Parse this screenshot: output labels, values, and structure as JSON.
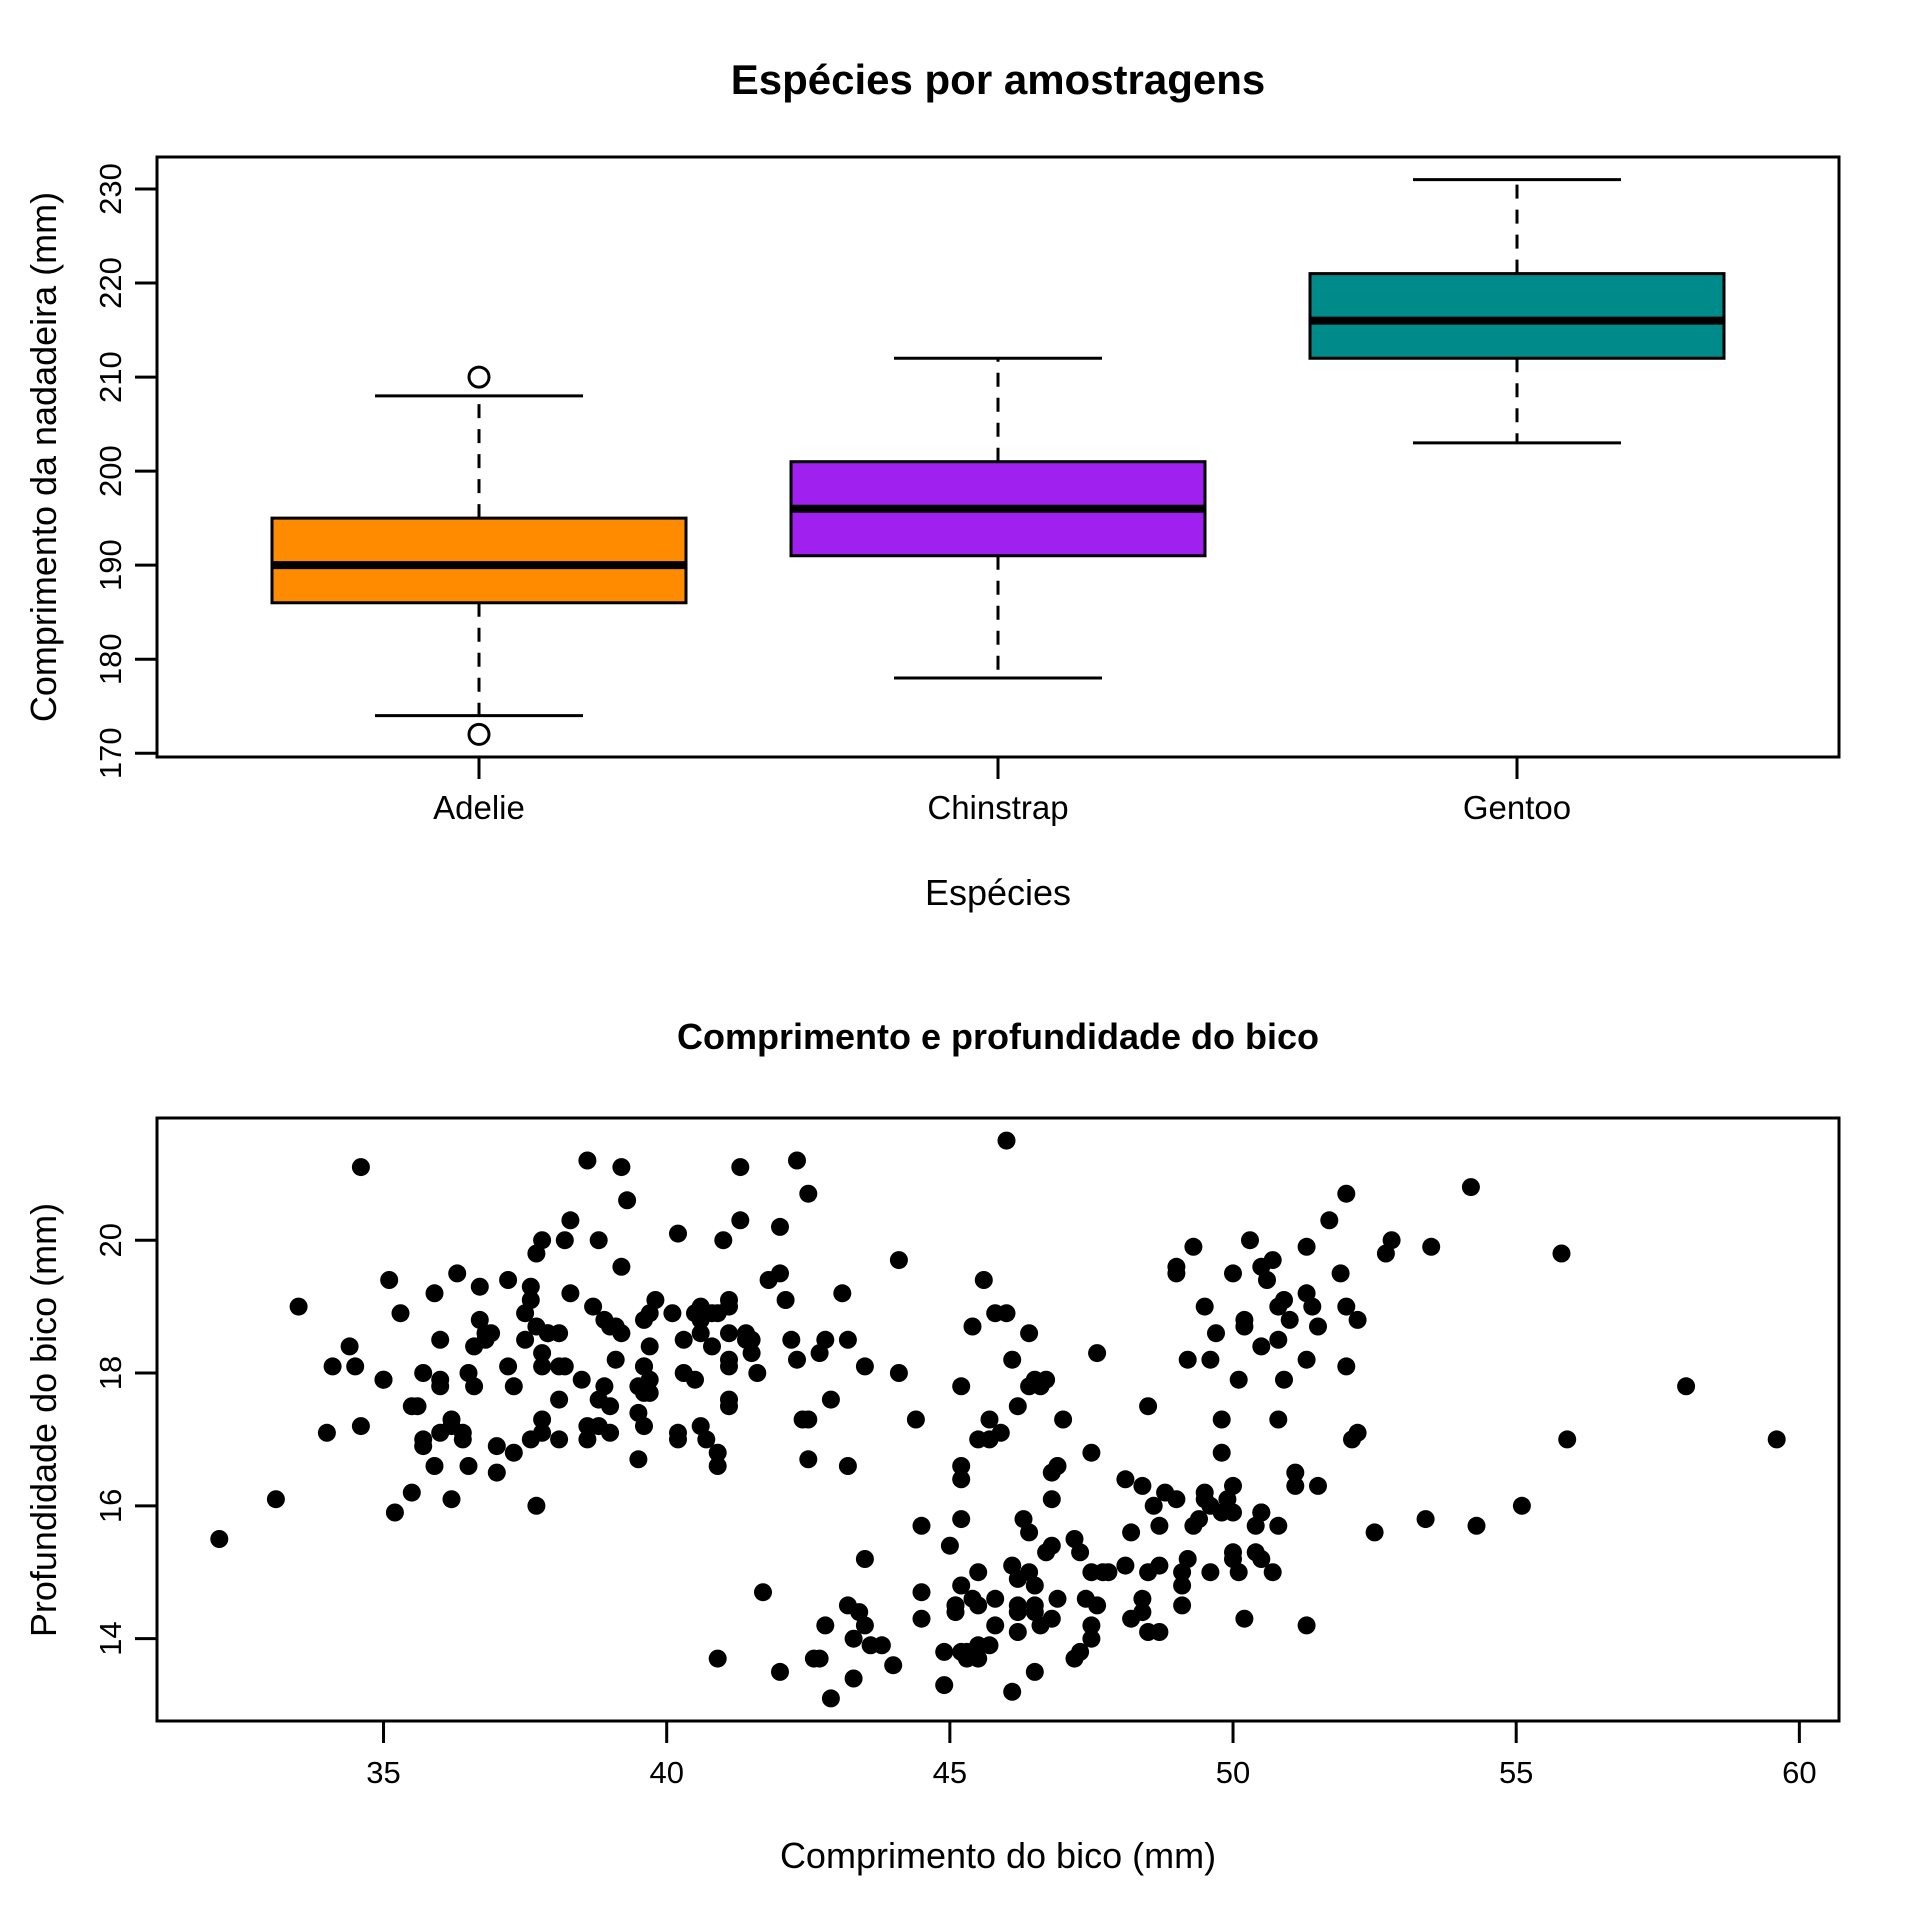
{
  "figure": {
    "background": "#ffffff",
    "foreground": "#000000"
  },
  "chart_data": [
    {
      "type": "boxplot",
      "title": "Espécies por amostragens",
      "xlabel": "Espécies",
      "ylabel": "Comprimento da nadadeira (mm)",
      "categories": [
        "Adelie",
        "Chinstrap",
        "Gentoo"
      ],
      "box_colors": [
        "#FF8C00",
        "#A020F0",
        "#008B8B"
      ],
      "yticks": [
        170,
        180,
        190,
        200,
        210,
        220,
        230
      ],
      "ylim": [
        169.6,
        233.4
      ],
      "grid": false,
      "stats": [
        {
          "lower_whisker": 174,
          "q1": 186,
          "median": 190,
          "q3": 195,
          "upper_whisker": 208,
          "outliers": [
            172,
            210
          ]
        },
        {
          "lower_whisker": 178,
          "q1": 191,
          "median": 196,
          "q3": 201,
          "upper_whisker": 212,
          "outliers": []
        },
        {
          "lower_whisker": 203,
          "q1": 212,
          "median": 216,
          "q3": 221,
          "upper_whisker": 231,
          "outliers": []
        }
      ]
    },
    {
      "type": "scatter",
      "title": "Comprimento e profundidade do bico",
      "xlabel": "Comprimento do bico (mm)",
      "ylabel": "Profundidade do bico (mm)",
      "xticks": [
        35,
        40,
        45,
        50,
        55,
        60
      ],
      "yticks": [
        14,
        16,
        18,
        20
      ],
      "xlim": [
        31.0,
        60.7
      ],
      "ylim": [
        12.76,
        21.84
      ],
      "grid": false,
      "point_color": "#000000",
      "points": [
        [
          39.1,
          18.7
        ],
        [
          39.5,
          17.4
        ],
        [
          40.3,
          18.0
        ],
        [
          36.7,
          19.3
        ],
        [
          39.3,
          20.6
        ],
        [
          38.9,
          17.8
        ],
        [
          39.2,
          19.6
        ],
        [
          34.1,
          18.1
        ],
        [
          42.0,
          20.2
        ],
        [
          37.8,
          17.1
        ],
        [
          37.8,
          17.3
        ],
        [
          41.1,
          17.6
        ],
        [
          38.6,
          21.2
        ],
        [
          34.6,
          21.1
        ],
        [
          36.6,
          17.8
        ],
        [
          38.7,
          19.0
        ],
        [
          42.5,
          20.7
        ],
        [
          34.4,
          18.4
        ],
        [
          46.0,
          21.5
        ],
        [
          37.8,
          18.3
        ],
        [
          37.7,
          18.7
        ],
        [
          35.9,
          19.2
        ],
        [
          38.2,
          18.1
        ],
        [
          38.8,
          17.2
        ],
        [
          35.3,
          18.9
        ],
        [
          40.6,
          18.6
        ],
        [
          40.5,
          17.9
        ],
        [
          37.9,
          18.6
        ],
        [
          40.5,
          18.9
        ],
        [
          39.5,
          16.7
        ],
        [
          37.2,
          18.1
        ],
        [
          39.5,
          17.8
        ],
        [
          40.9,
          18.9
        ],
        [
          36.4,
          17.0
        ],
        [
          39.2,
          21.1
        ],
        [
          38.8,
          20.0
        ],
        [
          42.2,
          18.5
        ],
        [
          37.6,
          19.3
        ],
        [
          39.8,
          19.1
        ],
        [
          36.5,
          18.0
        ],
        [
          40.8,
          18.4
        ],
        [
          36.0,
          18.5
        ],
        [
          44.1,
          19.7
        ],
        [
          37.0,
          16.9
        ],
        [
          39.6,
          18.8
        ],
        [
          41.1,
          19.0
        ],
        [
          37.5,
          18.9
        ],
        [
          36.0,
          17.9
        ],
        [
          42.3,
          21.2
        ],
        [
          39.6,
          17.7
        ],
        [
          40.1,
          18.9
        ],
        [
          35.0,
          17.9
        ],
        [
          42.0,
          19.5
        ],
        [
          34.5,
          18.1
        ],
        [
          41.4,
          18.6
        ],
        [
          39.0,
          17.5
        ],
        [
          40.6,
          18.8
        ],
        [
          36.5,
          16.6
        ],
        [
          37.6,
          19.1
        ],
        [
          35.7,
          16.9
        ],
        [
          41.3,
          21.1
        ],
        [
          37.6,
          17.0
        ],
        [
          41.1,
          18.2
        ],
        [
          36.4,
          17.1
        ],
        [
          41.6,
          18.0
        ],
        [
          35.5,
          16.2
        ],
        [
          41.1,
          19.1
        ],
        [
          35.9,
          16.6
        ],
        [
          41.8,
          19.4
        ],
        [
          33.5,
          19.0
        ],
        [
          39.7,
          18.4
        ],
        [
          39.6,
          17.2
        ],
        [
          45.8,
          18.9
        ],
        [
          35.5,
          17.5
        ],
        [
          42.8,
          18.5
        ],
        [
          40.9,
          16.8
        ],
        [
          37.2,
          19.4
        ],
        [
          36.2,
          16.1
        ],
        [
          42.1,
          19.1
        ],
        [
          34.6,
          17.2
        ],
        [
          42.9,
          17.6
        ],
        [
          36.7,
          18.8
        ],
        [
          35.1,
          19.4
        ],
        [
          37.3,
          17.8
        ],
        [
          41.3,
          20.3
        ],
        [
          36.3,
          19.5
        ],
        [
          36.9,
          18.6
        ],
        [
          38.3,
          19.2
        ],
        [
          38.9,
          18.8
        ],
        [
          35.7,
          18.0
        ],
        [
          41.1,
          18.1
        ],
        [
          34.0,
          17.1
        ],
        [
          39.6,
          18.1
        ],
        [
          36.2,
          17.3
        ],
        [
          40.8,
          18.9
        ],
        [
          38.1,
          18.6
        ],
        [
          40.3,
          18.5
        ],
        [
          33.1,
          16.1
        ],
        [
          43.2,
          18.5
        ],
        [
          35.0,
          17.9
        ],
        [
          41.0,
          20.0
        ],
        [
          37.7,
          16.0
        ],
        [
          37.8,
          20.0
        ],
        [
          37.9,
          18.6
        ],
        [
          39.7,
          18.9
        ],
        [
          38.6,
          17.2
        ],
        [
          38.2,
          20.0
        ],
        [
          38.1,
          17.0
        ],
        [
          38.3,
          20.3
        ],
        [
          39.1,
          18.2
        ],
        [
          41.1,
          17.5
        ],
        [
          36.0,
          17.1
        ],
        [
          42.3,
          18.2
        ],
        [
          39.6,
          18.1
        ],
        [
          36.2,
          17.2
        ],
        [
          37.7,
          19.8
        ],
        [
          40.2,
          17.1
        ],
        [
          41.4,
          18.5
        ],
        [
          35.2,
          15.9
        ],
        [
          40.6,
          19.0
        ],
        [
          38.8,
          17.6
        ],
        [
          41.5,
          18.3
        ],
        [
          39.0,
          17.1
        ],
        [
          44.1,
          18.0
        ],
        [
          38.5,
          17.9
        ],
        [
          43.1,
          19.2
        ],
        [
          36.8,
          18.5
        ],
        [
          37.5,
          18.5
        ],
        [
          38.1,
          17.6
        ],
        [
          35.6,
          17.5
        ],
        [
          40.2,
          20.1
        ],
        [
          37.0,
          16.5
        ],
        [
          39.7,
          17.7
        ],
        [
          40.2,
          17.0
        ],
        [
          40.6,
          17.2
        ],
        [
          32.1,
          15.5
        ],
        [
          40.7,
          17.0
        ],
        [
          37.3,
          16.8
        ],
        [
          39.0,
          18.7
        ],
        [
          39.2,
          18.6
        ],
        [
          36.6,
          18.4
        ],
        [
          36.0,
          17.8
        ],
        [
          37.8,
          18.1
        ],
        [
          41.5,
          18.5
        ],
        [
          42.7,
          18.3
        ],
        [
          38.6,
          17.0
        ],
        [
          36.8,
          18.6
        ],
        [
          35.7,
          17.0
        ],
        [
          41.1,
          18.6
        ],
        [
          39.7,
          17.9
        ],
        [
          38.1,
          18.1
        ],
        [
          46.5,
          17.9
        ],
        [
          50.0,
          19.5
        ],
        [
          51.3,
          19.2
        ],
        [
          45.4,
          18.7
        ],
        [
          52.7,
          19.8
        ],
        [
          45.2,
          17.8
        ],
        [
          46.1,
          18.2
        ],
        [
          51.3,
          18.2
        ],
        [
          46.0,
          18.9
        ],
        [
          51.3,
          19.9
        ],
        [
          46.6,
          17.8
        ],
        [
          51.7,
          20.3
        ],
        [
          47.0,
          17.3
        ],
        [
          52.0,
          18.1
        ],
        [
          45.9,
          17.1
        ],
        [
          50.5,
          19.6
        ],
        [
          50.3,
          20.0
        ],
        [
          58.0,
          17.8
        ],
        [
          46.4,
          18.6
        ],
        [
          49.2,
          18.2
        ],
        [
          42.4,
          17.3
        ],
        [
          48.5,
          17.5
        ],
        [
          43.2,
          16.6
        ],
        [
          50.6,
          19.4
        ],
        [
          46.7,
          17.9
        ],
        [
          52.0,
          19.0
        ],
        [
          50.5,
          18.4
        ],
        [
          49.5,
          19.0
        ],
        [
          46.4,
          17.8
        ],
        [
          52.8,
          20.0
        ],
        [
          40.9,
          16.6
        ],
        [
          54.2,
          20.8
        ],
        [
          42.5,
          16.7
        ],
        [
          51.0,
          18.8
        ],
        [
          49.7,
          18.6
        ],
        [
          47.5,
          16.8
        ],
        [
          47.6,
          18.3
        ],
        [
          52.0,
          20.7
        ],
        [
          46.9,
          16.6
        ],
        [
          53.5,
          19.9
        ],
        [
          49.0,
          19.5
        ],
        [
          46.2,
          17.5
        ],
        [
          50.9,
          19.1
        ],
        [
          45.5,
          17.0
        ],
        [
          50.9,
          17.9
        ],
        [
          50.8,
          18.5
        ],
        [
          50.1,
          17.9
        ],
        [
          49.0,
          19.6
        ],
        [
          51.5,
          18.7
        ],
        [
          49.8,
          17.3
        ],
        [
          48.1,
          16.4
        ],
        [
          51.4,
          19.0
        ],
        [
          45.7,
          17.3
        ],
        [
          50.7,
          19.7
        ],
        [
          42.5,
          17.3
        ],
        [
          52.2,
          18.8
        ],
        [
          45.2,
          16.6
        ],
        [
          49.3,
          19.9
        ],
        [
          50.2,
          18.8
        ],
        [
          45.6,
          19.4
        ],
        [
          51.9,
          19.5
        ],
        [
          46.8,
          16.5
        ],
        [
          45.7,
          17.0
        ],
        [
          55.8,
          19.8
        ],
        [
          43.5,
          18.1
        ],
        [
          49.6,
          18.2
        ],
        [
          50.8,
          19.0
        ],
        [
          50.2,
          18.7
        ],
        [
          46.1,
          13.2
        ],
        [
          50.0,
          16.3
        ],
        [
          48.7,
          14.1
        ],
        [
          50.0,
          15.2
        ],
        [
          47.6,
          14.5
        ],
        [
          46.5,
          13.5
        ],
        [
          45.4,
          14.6
        ],
        [
          46.7,
          15.3
        ],
        [
          43.3,
          13.4
        ],
        [
          46.8,
          15.4
        ],
        [
          40.9,
          13.7
        ],
        [
          49.0,
          16.1
        ],
        [
          45.5,
          13.7
        ],
        [
          48.4,
          14.6
        ],
        [
          45.8,
          14.6
        ],
        [
          49.3,
          15.7
        ],
        [
          42.0,
          13.5
        ],
        [
          49.2,
          15.2
        ],
        [
          46.2,
          14.5
        ],
        [
          48.7,
          15.1
        ],
        [
          50.2,
          14.3
        ],
        [
          45.1,
          14.5
        ],
        [
          46.5,
          14.5
        ],
        [
          46.3,
          15.8
        ],
        [
          42.9,
          13.1
        ],
        [
          46.1,
          15.1
        ],
        [
          44.5,
          14.3
        ],
        [
          47.8,
          15.0
        ],
        [
          48.2,
          14.3
        ],
        [
          50.0,
          15.3
        ],
        [
          47.3,
          15.3
        ],
        [
          42.8,
          14.2
        ],
        [
          45.1,
          14.5
        ],
        [
          59.6,
          17.0
        ],
        [
          49.1,
          14.8
        ],
        [
          48.4,
          16.3
        ],
        [
          42.6,
          13.7
        ],
        [
          44.4,
          17.3
        ],
        [
          44.0,
          13.6
        ],
        [
          48.7,
          15.7
        ],
        [
          42.7,
          13.7
        ],
        [
          49.6,
          16.0
        ],
        [
          45.3,
          13.7
        ],
        [
          49.6,
          15.0
        ],
        [
          50.5,
          15.9
        ],
        [
          43.6,
          13.9
        ],
        [
          45.5,
          13.9
        ],
        [
          50.5,
          15.9
        ],
        [
          44.9,
          13.3
        ],
        [
          45.2,
          15.8
        ],
        [
          46.6,
          14.2
        ],
        [
          48.5,
          14.1
        ],
        [
          45.1,
          14.4
        ],
        [
          50.1,
          15.0
        ],
        [
          46.5,
          14.4
        ],
        [
          45.0,
          15.4
        ],
        [
          43.8,
          13.9
        ],
        [
          45.5,
          15.0
        ],
        [
          43.2,
          14.5
        ],
        [
          50.4,
          15.3
        ],
        [
          45.3,
          13.8
        ],
        [
          46.2,
          14.9
        ],
        [
          45.7,
          13.9
        ],
        [
          54.3,
          15.7
        ],
        [
          45.8,
          14.2
        ],
        [
          49.8,
          16.8
        ],
        [
          46.2,
          14.4
        ],
        [
          49.5,
          16.2
        ],
        [
          43.5,
          14.2
        ],
        [
          50.7,
          15.0
        ],
        [
          47.7,
          15.0
        ],
        [
          46.4,
          15.6
        ],
        [
          48.2,
          15.6
        ],
        [
          46.5,
          14.8
        ],
        [
          46.4,
          15.0
        ],
        [
          48.6,
          16.0
        ],
        [
          47.5,
          14.2
        ],
        [
          51.1,
          16.3
        ],
        [
          45.2,
          13.8
        ],
        [
          45.2,
          16.4
        ],
        [
          49.1,
          14.5
        ],
        [
          52.5,
          15.6
        ],
        [
          47.4,
          14.6
        ],
        [
          50.0,
          15.9
        ],
        [
          44.9,
          13.8
        ],
        [
          50.8,
          17.3
        ],
        [
          43.4,
          14.4
        ],
        [
          51.3,
          14.2
        ],
        [
          47.5,
          14.0
        ],
        [
          52.1,
          17.0
        ],
        [
          47.5,
          15.0
        ],
        [
          52.2,
          17.1
        ],
        [
          45.5,
          14.5
        ],
        [
          49.5,
          16.1
        ],
        [
          44.5,
          14.7
        ],
        [
          50.8,
          15.7
        ],
        [
          49.4,
          15.8
        ],
        [
          46.9,
          14.6
        ],
        [
          48.4,
          14.4
        ],
        [
          51.1,
          16.5
        ],
        [
          48.5,
          15.0
        ],
        [
          55.9,
          17.0
        ],
        [
          47.2,
          15.5
        ],
        [
          49.1,
          15.0
        ],
        [
          47.3,
          13.8
        ],
        [
          46.8,
          16.1
        ],
        [
          41.7,
          14.7
        ],
        [
          53.4,
          15.8
        ],
        [
          43.3,
          14.0
        ],
        [
          48.1,
          15.1
        ],
        [
          50.5,
          15.2
        ],
        [
          49.8,
          15.9
        ],
        [
          43.5,
          15.2
        ],
        [
          51.5,
          16.3
        ],
        [
          46.2,
          14.1
        ],
        [
          55.1,
          16.0
        ],
        [
          44.5,
          15.7
        ],
        [
          48.8,
          16.2
        ],
        [
          47.2,
          13.7
        ],
        [
          46.8,
          14.3
        ],
        [
          50.4,
          15.7
        ],
        [
          45.2,
          14.8
        ],
        [
          49.9,
          16.1
        ]
      ]
    }
  ]
}
